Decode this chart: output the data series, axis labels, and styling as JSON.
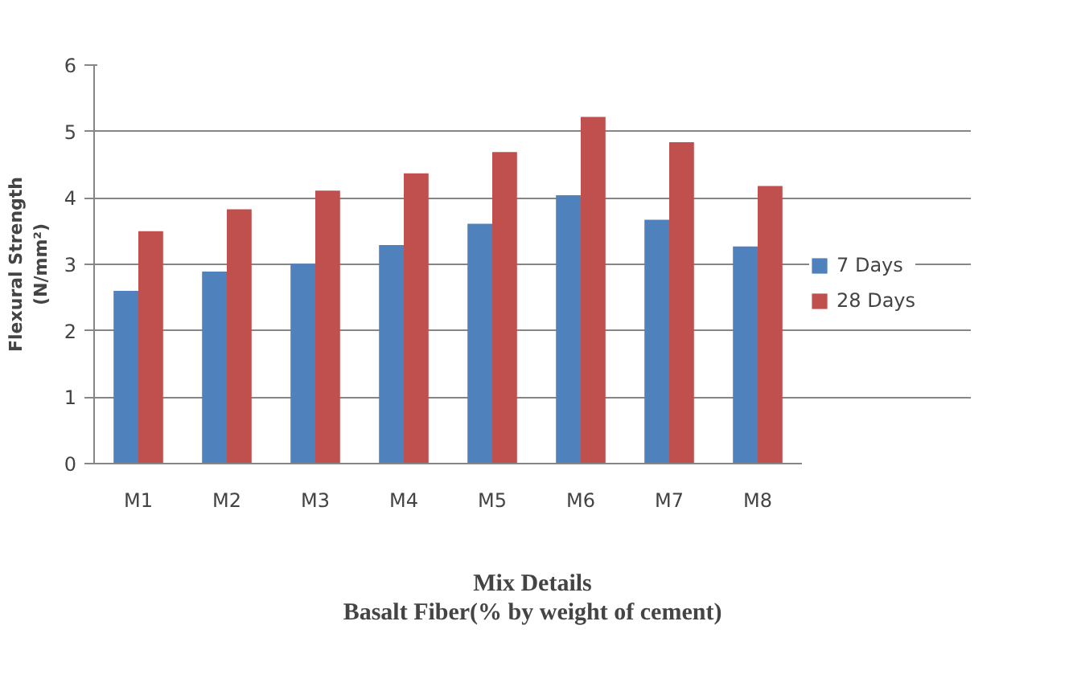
{
  "chart_data": {
    "type": "bar",
    "xlabel": "Mix Details\nBasalt Fiber(% by weight of cement)",
    "ylabel": "Flexural Strength\n(N/mm²)",
    "categories": [
      "M1",
      "M2",
      "M3",
      "M4",
      "M5",
      "M6",
      "M7",
      "M8"
    ],
    "series": [
      {
        "name": "7 Days",
        "color": "#4f81bd",
        "values": [
          2.6,
          2.89,
          3.01,
          3.29,
          3.61,
          4.04,
          3.67,
          3.27
        ]
      },
      {
        "name": "28 Days",
        "color": "#c0504d",
        "values": [
          3.5,
          3.83,
          4.11,
          4.37,
          4.69,
          5.22,
          4.84,
          4.18
        ]
      }
    ],
    "ylim": [
      0,
      6
    ],
    "yticks": [
      0,
      1,
      2,
      3,
      4,
      5,
      6
    ],
    "grid": "y",
    "legend": "right"
  }
}
